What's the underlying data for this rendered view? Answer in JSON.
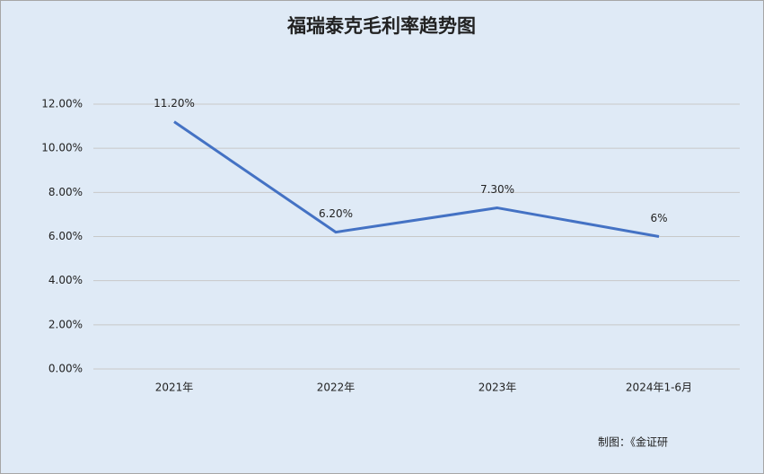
{
  "chart_data": {
    "type": "line",
    "title": "福瑞泰克毛利率趋势图",
    "categories": [
      "2021年",
      "2022年",
      "2023年",
      "2024年1-6月"
    ],
    "series": [
      {
        "name": "毛利率",
        "color": "#4472c4",
        "values": [
          11.2,
          6.2,
          7.3,
          6
        ],
        "value_labels": [
          "11.20%",
          "6.20%",
          "7.30%",
          "6%"
        ]
      }
    ],
    "ylim": [
      0,
      12
    ],
    "yticks": [
      {
        "value": 0,
        "label": "0.00%"
      },
      {
        "value": 2,
        "label": "2.00%"
      },
      {
        "value": 4,
        "label": "4.00%"
      },
      {
        "value": 6,
        "label": "6.00%"
      },
      {
        "value": 8,
        "label": "8.00%"
      },
      {
        "value": 10,
        "label": "10.00%"
      },
      {
        "value": 12,
        "label": "12.00%"
      }
    ],
    "grid": true,
    "note": "制图：《金证研"
  }
}
